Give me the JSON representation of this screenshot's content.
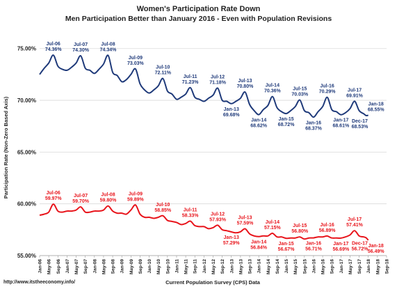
{
  "chart_data": {
    "type": "line",
    "title": "Women's Participation Rate Down",
    "subtitle": "Men Participation Better than January 2016 - Even with Population Revisions",
    "xlabel": "Current Population Survey (CPS) Data",
    "ylabel": "Participation Rate (Non-Zero Based Axis)",
    "ylim": [
      55,
      77
    ],
    "yticks": [
      55,
      60,
      65,
      70,
      75
    ],
    "ytick_labels": [
      "55.00%",
      "60.00%",
      "65.00%",
      "70.00%",
      "75.00%"
    ],
    "x_start": "Jan-06",
    "x_end": "Sep-18",
    "xtick_labels": [
      "Jan-06",
      "May-06",
      "Sep-06",
      "Jan-07",
      "May-07",
      "Sep-07",
      "Jan-08",
      "May-08",
      "Sep-08",
      "Jan-09",
      "May-09",
      "Sep-09",
      "Jan-10",
      "May-10",
      "Sep-10",
      "Jan-11",
      "May-11",
      "Sep-11",
      "Jan-12",
      "May-12",
      "Sep-12",
      "Jan-13",
      "May-13",
      "Sep-13",
      "Jan-14",
      "May-14",
      "Sep-14",
      "Jan-15",
      "May-15",
      "Sep-15",
      "Jan-16",
      "May-16",
      "Sep-16",
      "Jan-17",
      "May-17",
      "Sep-17",
      "Jan-18",
      "May-18",
      "Sep-18"
    ],
    "grid": true,
    "source": "http://www.itstheeconomy.info/",
    "series": [
      {
        "color": "#1f3a7a",
        "annotations": [
          {
            "x": "Jul-06",
            "value": 74.36,
            "label": "Jul-06",
            "value_label": "74.36%",
            "pos": "above"
          },
          {
            "x": "Jul-07",
            "value": 74.3,
            "label": "Jul-07",
            "value_label": "74.30%",
            "pos": "above"
          },
          {
            "x": "Jul-08",
            "value": 74.34,
            "label": "Jul-08",
            "value_label": "74.34%",
            "pos": "above"
          },
          {
            "x": "Jul-09",
            "value": 73.03,
            "label": "Jul-09",
            "value_label": "73.03%",
            "pos": "above"
          },
          {
            "x": "Jul-10",
            "value": 72.11,
            "label": "Jul-10",
            "value_label": "72.11%",
            "pos": "above"
          },
          {
            "x": "Jul-11",
            "value": 71.23,
            "label": "Jul-11",
            "value_label": "71.23%",
            "pos": "above"
          },
          {
            "x": "Jul-12",
            "value": 71.18,
            "label": "Jul-12",
            "value_label": "71.18%",
            "pos": "above"
          },
          {
            "x": "Jan-13",
            "value": 69.68,
            "label": "Jan-13",
            "value_label": "69.68%",
            "pos": "below"
          },
          {
            "x": "Jul-13",
            "value": 70.8,
            "label": "Jul-13",
            "value_label": "70.80%",
            "pos": "above"
          },
          {
            "x": "Jan-14",
            "value": 68.62,
            "label": "Jan-14",
            "value_label": "68.62%",
            "pos": "below"
          },
          {
            "x": "Jul-14",
            "value": 70.36,
            "label": "Jul-14",
            "value_label": "70.36%",
            "pos": "above"
          },
          {
            "x": "Jan-15",
            "value": 68.72,
            "label": "Jan-15",
            "value_label": "68.72%",
            "pos": "below"
          },
          {
            "x": "Jul-15",
            "value": 70.03,
            "label": "Jul-15",
            "value_label": "70.03%",
            "pos": "above"
          },
          {
            "x": "Jan-16",
            "value": 68.37,
            "label": "Jan-16",
            "value_label": "68.37%",
            "pos": "below"
          },
          {
            "x": "Jul-16",
            "value": 70.29,
            "label": "Jul-16",
            "value_label": "70.29%",
            "pos": "above"
          },
          {
            "x": "Jan-17",
            "value": 68.61,
            "label": "Jan-17",
            "value_label": "68.61%",
            "pos": "below"
          },
          {
            "x": "Jul-17",
            "value": 69.91,
            "label": "Jul-17",
            "value_label": "69.91%",
            "pos": "above"
          },
          {
            "x": "Dec-17",
            "value": 68.53,
            "label": "Dec-17",
            "value_label": "68.53%",
            "pos": "below"
          },
          {
            "x": "Jan-18",
            "value": 68.55,
            "label": "Jan-18",
            "value_label": "68.55%",
            "pos": "above"
          }
        ],
        "anchors": [
          [
            "Jan-06",
            72.5
          ],
          [
            "Mar-06",
            73.1
          ],
          [
            "May-06",
            73.6
          ],
          [
            "Jul-06",
            74.36
          ],
          [
            "Sep-06",
            73.3
          ],
          [
            "Nov-06",
            73.0
          ],
          [
            "Jan-07",
            72.9
          ],
          [
            "Mar-07",
            73.2
          ],
          [
            "May-07",
            73.6
          ],
          [
            "Jul-07",
            74.3
          ],
          [
            "Sep-07",
            73.1
          ],
          [
            "Nov-07",
            72.9
          ],
          [
            "Jan-08",
            72.6
          ],
          [
            "Mar-08",
            73.0
          ],
          [
            "May-08",
            73.5
          ],
          [
            "Jul-08",
            74.34
          ],
          [
            "Sep-08",
            72.7
          ],
          [
            "Nov-08",
            72.4
          ],
          [
            "Jan-09",
            71.8
          ],
          [
            "Mar-09",
            72.0
          ],
          [
            "May-09",
            72.5
          ],
          [
            "Jul-09",
            73.03
          ],
          [
            "Sep-09",
            71.6
          ],
          [
            "Nov-09",
            71.0
          ],
          [
            "Jan-10",
            70.7
          ],
          [
            "Mar-10",
            71.0
          ],
          [
            "May-10",
            71.4
          ],
          [
            "Jul-10",
            72.11
          ],
          [
            "Sep-10",
            70.9
          ],
          [
            "Nov-10",
            70.6
          ],
          [
            "Jan-11",
            70.1
          ],
          [
            "Mar-11",
            70.3
          ],
          [
            "May-11",
            70.6
          ],
          [
            "Jul-11",
            71.23
          ],
          [
            "Sep-11",
            70.3
          ],
          [
            "Nov-11",
            70.1
          ],
          [
            "Jan-12",
            69.9
          ],
          [
            "Mar-12",
            70.2
          ],
          [
            "May-12",
            70.5
          ],
          [
            "Jul-12",
            71.18
          ],
          [
            "Sep-12",
            70.0
          ],
          [
            "Nov-12",
            69.9
          ],
          [
            "Jan-13",
            69.68
          ],
          [
            "Mar-13",
            69.9
          ],
          [
            "May-13",
            70.2
          ],
          [
            "Jul-13",
            70.8
          ],
          [
            "Sep-13",
            69.6
          ],
          [
            "Nov-13",
            69.0
          ],
          [
            "Jan-14",
            68.62
          ],
          [
            "Mar-14",
            69.1
          ],
          [
            "May-14",
            69.5
          ],
          [
            "Jul-14",
            70.36
          ],
          [
            "Sep-14",
            69.3
          ],
          [
            "Nov-14",
            68.9
          ],
          [
            "Jan-15",
            68.72
          ],
          [
            "Mar-15",
            69.0
          ],
          [
            "May-15",
            69.4
          ],
          [
            "Jul-15",
            70.03
          ],
          [
            "Sep-15",
            69.0
          ],
          [
            "Nov-15",
            68.8
          ],
          [
            "Jan-16",
            68.37
          ],
          [
            "Mar-16",
            68.9
          ],
          [
            "May-16",
            69.4
          ],
          [
            "Jul-16",
            70.29
          ],
          [
            "Sep-16",
            69.1
          ],
          [
            "Nov-16",
            68.9
          ],
          [
            "Jan-17",
            68.61
          ],
          [
            "Mar-17",
            68.8
          ],
          [
            "May-17",
            69.2
          ],
          [
            "Jul-17",
            69.91
          ],
          [
            "Sep-17",
            69.0
          ],
          [
            "Nov-17",
            68.7
          ],
          [
            "Dec-17",
            68.53
          ],
          [
            "Jan-18",
            68.55
          ]
        ]
      },
      {
        "color": "#e8141b",
        "annotations": [
          {
            "x": "Jul-06",
            "value": 59.97,
            "label": "Jul-06",
            "value_label": "59.97%",
            "pos": "above"
          },
          {
            "x": "Jul-07",
            "value": 59.7,
            "label": "Jul-07",
            "value_label": "59.70%",
            "pos": "above"
          },
          {
            "x": "Jul-08",
            "value": 59.8,
            "label": "Jul-08",
            "value_label": "59.80%",
            "pos": "above"
          },
          {
            "x": "Jul-09",
            "value": 59.89,
            "label": "Jul-09",
            "value_label": "59.89%",
            "pos": "above"
          },
          {
            "x": "Jul-10",
            "value": 58.85,
            "label": "Jul-10",
            "value_label": "58.85%",
            "pos": "above"
          },
          {
            "x": "Jul-11",
            "value": 58.33,
            "label": "Jul-11",
            "value_label": "58.33%",
            "pos": "above"
          },
          {
            "x": "Jul-12",
            "value": 57.93,
            "label": "Jul-12",
            "value_label": "57.93%",
            "pos": "above"
          },
          {
            "x": "Jan-13",
            "value": 57.29,
            "label": "Jan-13",
            "value_label": "57.29%",
            "pos": "below"
          },
          {
            "x": "Jul-13",
            "value": 57.59,
            "label": "Jul-13",
            "value_label": "57.59%",
            "pos": "above"
          },
          {
            "x": "Jan-14",
            "value": 56.84,
            "label": "Jan-14",
            "value_label": "56.84%",
            "pos": "below"
          },
          {
            "x": "Jul-14",
            "value": 57.15,
            "label": "Jul-14",
            "value_label": "57.15%",
            "pos": "above"
          },
          {
            "x": "Jan-15",
            "value": 56.67,
            "label": "Jan-15",
            "value_label": "56.67%",
            "pos": "below"
          },
          {
            "x": "Jul-15",
            "value": 56.8,
            "label": "Jul-15",
            "value_label": "56.80%",
            "pos": "above"
          },
          {
            "x": "Jan-16",
            "value": 56.71,
            "label": "Jan-16",
            "value_label": "56.71%",
            "pos": "below"
          },
          {
            "x": "Jul-16",
            "value": 56.89,
            "label": "Jul-16",
            "value_label": "56.89%",
            "pos": "above"
          },
          {
            "x": "Jan-17",
            "value": 56.69,
            "label": "Jan-17",
            "value_label": "56.69%",
            "pos": "below"
          },
          {
            "x": "Jul-17",
            "value": 57.41,
            "label": "Jul-17",
            "value_label": "57.41%",
            "pos": "above"
          },
          {
            "x": "Dec-17",
            "value": 56.72,
            "label": "Dec-17",
            "value_label": "56.72%",
            "pos": "below"
          },
          {
            "x": "Jan-18",
            "value": 56.49,
            "label": "Jan-18",
            "value_label": "56.49%",
            "pos": "below"
          }
        ],
        "anchors": [
          [
            "Jan-06",
            58.9
          ],
          [
            "Mar-06",
            59.0
          ],
          [
            "May-06",
            59.2
          ],
          [
            "Jul-06",
            59.97
          ],
          [
            "Sep-06",
            59.3
          ],
          [
            "Nov-06",
            59.2
          ],
          [
            "Jan-07",
            59.3
          ],
          [
            "Mar-07",
            59.3
          ],
          [
            "May-07",
            59.4
          ],
          [
            "Jul-07",
            59.7
          ],
          [
            "Sep-07",
            59.2
          ],
          [
            "Nov-07",
            59.2
          ],
          [
            "Jan-08",
            59.3
          ],
          [
            "Mar-08",
            59.3
          ],
          [
            "May-08",
            59.4
          ],
          [
            "Jul-08",
            59.8
          ],
          [
            "Sep-08",
            59.3
          ],
          [
            "Nov-08",
            59.1
          ],
          [
            "Jan-09",
            59.1
          ],
          [
            "Mar-09",
            59.0
          ],
          [
            "May-09",
            59.4
          ],
          [
            "Jul-09",
            59.89
          ],
          [
            "Sep-09",
            59.0
          ],
          [
            "Nov-09",
            58.7
          ],
          [
            "Jan-10",
            58.7
          ],
          [
            "Mar-10",
            58.6
          ],
          [
            "May-10",
            58.7
          ],
          [
            "Jul-10",
            58.85
          ],
          [
            "Sep-10",
            58.4
          ],
          [
            "Nov-10",
            58.3
          ],
          [
            "Jan-11",
            58.2
          ],
          [
            "Mar-11",
            58.0
          ],
          [
            "May-11",
            58.1
          ],
          [
            "Jul-11",
            58.33
          ],
          [
            "Sep-11",
            57.9
          ],
          [
            "Nov-11",
            57.8
          ],
          [
            "Jan-12",
            57.8
          ],
          [
            "Mar-12",
            57.6
          ],
          [
            "May-12",
            57.7
          ],
          [
            "Jul-12",
            57.93
          ],
          [
            "Sep-12",
            57.5
          ],
          [
            "Nov-12",
            57.4
          ],
          [
            "Jan-13",
            57.29
          ],
          [
            "Mar-13",
            57.2
          ],
          [
            "May-13",
            57.3
          ],
          [
            "Jul-13",
            57.59
          ],
          [
            "Sep-13",
            57.1
          ],
          [
            "Nov-13",
            56.9
          ],
          [
            "Jan-14",
            56.84
          ],
          [
            "Mar-14",
            56.9
          ],
          [
            "May-14",
            56.9
          ],
          [
            "Jul-14",
            57.15
          ],
          [
            "Sep-14",
            56.8
          ],
          [
            "Nov-14",
            56.8
          ],
          [
            "Jan-15",
            56.67
          ],
          [
            "Mar-15",
            56.7
          ],
          [
            "May-15",
            56.7
          ],
          [
            "Jul-15",
            56.8
          ],
          [
            "Sep-15",
            56.6
          ],
          [
            "Nov-15",
            56.7
          ],
          [
            "Jan-16",
            56.71
          ],
          [
            "Mar-16",
            56.8
          ],
          [
            "May-16",
            56.8
          ],
          [
            "Jul-16",
            56.89
          ],
          [
            "Sep-16",
            56.7
          ],
          [
            "Nov-16",
            56.7
          ],
          [
            "Jan-17",
            56.69
          ],
          [
            "Mar-17",
            56.8
          ],
          [
            "May-17",
            57.0
          ],
          [
            "Jul-17",
            57.41
          ],
          [
            "Sep-17",
            56.9
          ],
          [
            "Nov-17",
            56.8
          ],
          [
            "Dec-17",
            56.72
          ],
          [
            "Jan-18",
            56.49
          ]
        ]
      }
    ]
  }
}
